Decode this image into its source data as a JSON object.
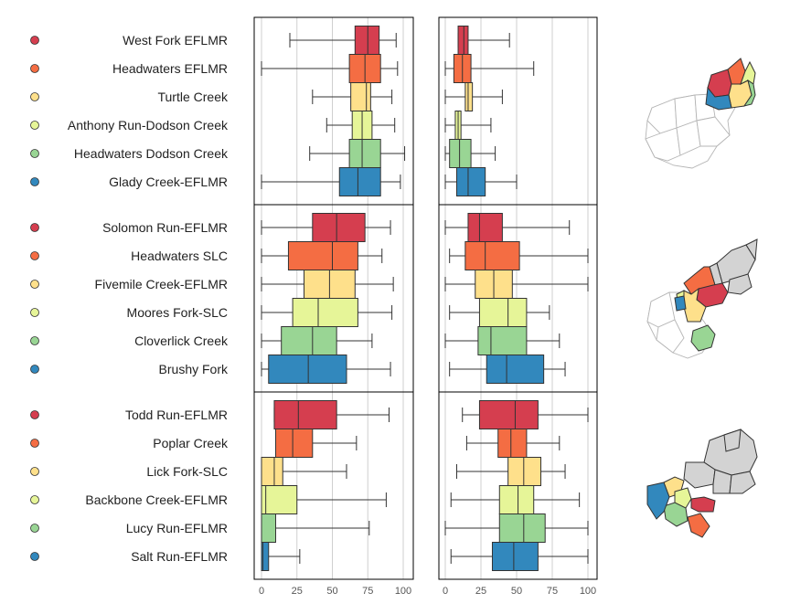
{
  "chart_data": {
    "type": "boxplot",
    "xlim": [
      0,
      100
    ],
    "xticks": [
      0,
      25,
      50,
      75,
      100
    ],
    "grid": true,
    "panels": [
      {
        "name": "left"
      },
      {
        "name": "right"
      }
    ],
    "groups": [
      {
        "rows": [
          {
            "label": "West Fork EFLMR",
            "color": "#d53e4f",
            "left": {
              "whisker_low": 20,
              "q1": 66,
              "median": 75,
              "q3": 83,
              "whisker_high": 95
            },
            "right": {
              "whisker_low": 9,
              "q1": 9,
              "median": 13,
              "q3": 16,
              "whisker_high": 45
            }
          },
          {
            "label": "Headwaters EFLMR",
            "color": "#f46d43",
            "left": {
              "whisker_low": 0,
              "q1": 62,
              "median": 73,
              "q3": 84,
              "whisker_high": 96
            },
            "right": {
              "whisker_low": 0,
              "q1": 6,
              "median": 12,
              "q3": 18,
              "whisker_high": 62
            }
          },
          {
            "label": "Turtle Creek",
            "color": "#fee08b",
            "left": {
              "whisker_low": 36,
              "q1": 63,
              "median": 74,
              "q3": 77,
              "whisker_high": 92
            },
            "right": {
              "whisker_low": 0,
              "q1": 14,
              "median": 16,
              "q3": 19,
              "whisker_high": 40
            }
          },
          {
            "label": "Anthony Run-Dodson Creek",
            "color": "#e6f598",
            "left": {
              "whisker_low": 46,
              "q1": 64,
              "median": 71,
              "q3": 78,
              "whisker_high": 94
            },
            "right": {
              "whisker_low": 0,
              "q1": 7,
              "median": 9,
              "q3": 11,
              "whisker_high": 32
            }
          },
          {
            "label": "Headwaters Dodson Creek",
            "color": "#99d594",
            "left": {
              "whisker_low": 34,
              "q1": 62,
              "median": 71,
              "q3": 84,
              "whisker_high": 101
            },
            "right": {
              "whisker_low": 0,
              "q1": 3,
              "median": 10,
              "q3": 18,
              "whisker_high": 35
            }
          },
          {
            "label": "Glady Creek-EFLMR",
            "color": "#3288bd",
            "left": {
              "whisker_low": 0,
              "q1": 55,
              "median": 68,
              "q3": 84,
              "whisker_high": 98
            },
            "right": {
              "whisker_low": 0,
              "q1": 8,
              "median": 16,
              "q3": 28,
              "whisker_high": 50
            }
          }
        ]
      },
      {
        "rows": [
          {
            "label": "Solomon Run-EFLMR",
            "color": "#d53e4f",
            "left": {
              "whisker_low": 0,
              "q1": 36,
              "median": 53,
              "q3": 73,
              "whisker_high": 91
            },
            "right": {
              "whisker_low": 0,
              "q1": 16,
              "median": 24,
              "q3": 40,
              "whisker_high": 87
            }
          },
          {
            "label": "Headwaters SLC",
            "color": "#f46d43",
            "left": {
              "whisker_low": 0,
              "q1": 19,
              "median": 50,
              "q3": 68,
              "whisker_high": 85
            },
            "right": {
              "whisker_low": 3,
              "q1": 14,
              "median": 28,
              "q3": 52,
              "whisker_high": 100
            }
          },
          {
            "label": "Fivemile Creek-EFLMR",
            "color": "#fee08b",
            "left": {
              "whisker_low": 0,
              "q1": 30,
              "median": 48,
              "q3": 66,
              "whisker_high": 93
            },
            "right": {
              "whisker_low": 0,
              "q1": 21,
              "median": 34,
              "q3": 47,
              "whisker_high": 100
            }
          },
          {
            "label": "Moores Fork-SLC",
            "color": "#e6f598",
            "left": {
              "whisker_low": 0,
              "q1": 22,
              "median": 40,
              "q3": 68,
              "whisker_high": 92
            },
            "right": {
              "whisker_low": 3,
              "q1": 24,
              "median": 44,
              "q3": 57,
              "whisker_high": 73
            }
          },
          {
            "label": "Cloverlick Creek",
            "color": "#99d594",
            "left": {
              "whisker_low": 0,
              "q1": 14,
              "median": 36,
              "q3": 53,
              "whisker_high": 78
            },
            "right": {
              "whisker_low": 0,
              "q1": 23,
              "median": 32,
              "q3": 57,
              "whisker_high": 80
            }
          },
          {
            "label": "Brushy Fork",
            "color": "#3288bd",
            "left": {
              "whisker_low": 0,
              "q1": 5,
              "median": 33,
              "q3": 60,
              "whisker_high": 91
            },
            "right": {
              "whisker_low": 3,
              "q1": 29,
              "median": 43,
              "q3": 69,
              "whisker_high": 84
            }
          }
        ]
      },
      {
        "rows": [
          {
            "label": "Todd Run-EFLMR",
            "color": "#d53e4f",
            "left": {
              "whisker_low": 9,
              "q1": 9,
              "median": 26,
              "q3": 53,
              "whisker_high": 90
            },
            "right": {
              "whisker_low": 12,
              "q1": 24,
              "median": 49,
              "q3": 65,
              "whisker_high": 100
            }
          },
          {
            "label": "Poplar Creek",
            "color": "#f46d43",
            "left": {
              "whisker_low": 10,
              "q1": 10,
              "median": 22,
              "q3": 36,
              "whisker_high": 67
            },
            "right": {
              "whisker_low": 15,
              "q1": 37,
              "median": 46,
              "q3": 57,
              "whisker_high": 80
            }
          },
          {
            "label": "Lick Fork-SLC",
            "color": "#fee08b",
            "left": {
              "whisker_low": 0,
              "q1": 0,
              "median": 9,
              "q3": 15,
              "whisker_high": 60
            },
            "right": {
              "whisker_low": 8,
              "q1": 44,
              "median": 55,
              "q3": 67,
              "whisker_high": 84
            }
          },
          {
            "label": "Backbone Creek-EFLMR",
            "color": "#e6f598",
            "left": {
              "whisker_low": 0,
              "q1": 0,
              "median": 3,
              "q3": 25,
              "whisker_high": 88
            },
            "right": {
              "whisker_low": 4,
              "q1": 38,
              "median": 51,
              "q3": 62,
              "whisker_high": 94
            }
          },
          {
            "label": "Lucy Run-EFLMR",
            "color": "#99d594",
            "left": {
              "whisker_low": 0,
              "q1": 0,
              "median": 0,
              "q3": 10,
              "whisker_high": 76
            },
            "right": {
              "whisker_low": 0,
              "q1": 38,
              "median": 55,
              "q3": 70,
              "whisker_high": 100
            }
          },
          {
            "label": "Salt Run-EFLMR",
            "color": "#3288bd",
            "left": {
              "whisker_low": 0,
              "q1": 0,
              "median": 1,
              "q3": 5,
              "whisker_high": 27
            },
            "right": {
              "whisker_low": 4,
              "q1": 33,
              "median": 48,
              "q3": 65,
              "whisker_high": 100
            }
          }
        ]
      }
    ]
  },
  "maps": {
    "fill_inactive": "#d3d3d3",
    "fill_outline_only": "#ffffff",
    "stroke_outline_only": "#b5b5b5",
    "stroke_active": "#333333"
  }
}
